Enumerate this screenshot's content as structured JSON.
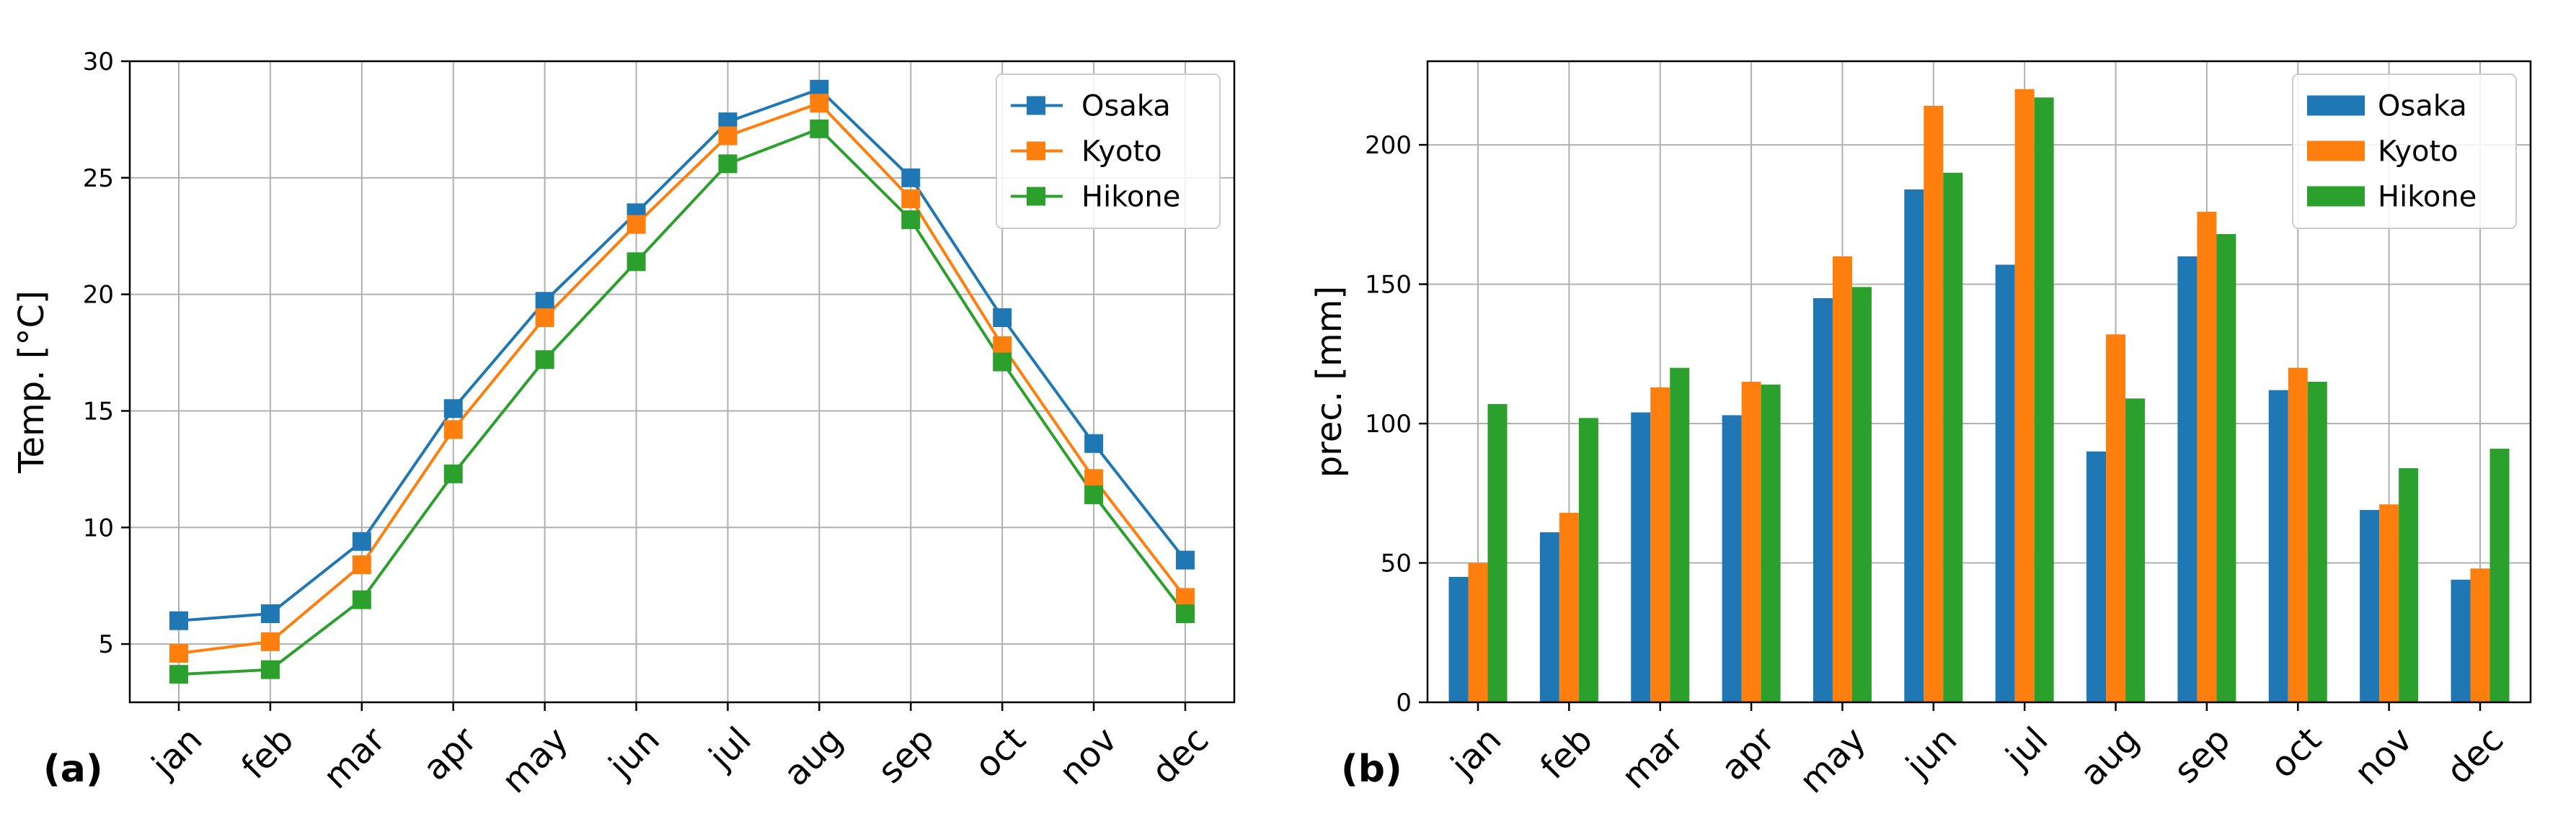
{
  "colors": {
    "osaka": "#1f77b4",
    "kyoto": "#ff7f0e",
    "hikone": "#2ca02c",
    "grid": "#b0b0b0"
  },
  "chart_data": [
    {
      "type": "line",
      "panel_label": "(a)",
      "xlabel": "",
      "ylabel": "Temp. [°C]",
      "categories": [
        "jan",
        "feb",
        "mar",
        "apr",
        "may",
        "jun",
        "jul",
        "aug",
        "sep",
        "oct",
        "nov",
        "dec"
      ],
      "ylim": [
        2.5,
        30
      ],
      "yticks": [
        5,
        10,
        15,
        20,
        25,
        30
      ],
      "grid": true,
      "legend_position": "top-right",
      "marker": "square",
      "series": [
        {
          "name": "Osaka",
          "color_key": "osaka",
          "values": [
            6.0,
            6.3,
            9.4,
            15.1,
            19.7,
            23.5,
            27.4,
            28.8,
            25.0,
            19.0,
            13.6,
            8.6
          ]
        },
        {
          "name": "Kyoto",
          "color_key": "kyoto",
          "values": [
            4.6,
            5.1,
            8.4,
            14.2,
            19.0,
            23.0,
            26.8,
            28.2,
            24.1,
            17.8,
            12.1,
            7.0
          ]
        },
        {
          "name": "Hikone",
          "color_key": "hikone",
          "values": [
            3.7,
            3.9,
            6.9,
            12.3,
            17.2,
            21.4,
            25.6,
            27.1,
            23.2,
            17.1,
            11.4,
            6.3
          ]
        }
      ]
    },
    {
      "type": "bar",
      "panel_label": "(b)",
      "xlabel": "",
      "ylabel": "prec. [mm]",
      "categories": [
        "jan",
        "feb",
        "mar",
        "apr",
        "may",
        "jun",
        "jul",
        "aug",
        "sep",
        "oct",
        "nov",
        "dec"
      ],
      "ylim": [
        0,
        230
      ],
      "yticks": [
        0,
        50,
        100,
        150,
        200
      ],
      "grid": true,
      "legend_position": "top-right",
      "series": [
        {
          "name": "Osaka",
          "color_key": "osaka",
          "values": [
            45,
            61,
            104,
            103,
            145,
            184,
            157,
            90,
            160,
            112,
            69,
            44
          ]
        },
        {
          "name": "Kyoto",
          "color_key": "kyoto",
          "values": [
            50,
            68,
            113,
            115,
            160,
            214,
            220,
            132,
            176,
            120,
            71,
            48
          ]
        },
        {
          "name": "Hikone",
          "color_key": "hikone",
          "values": [
            107,
            102,
            120,
            114,
            149,
            190,
            217,
            109,
            168,
            115,
            84,
            91
          ]
        }
      ]
    }
  ]
}
